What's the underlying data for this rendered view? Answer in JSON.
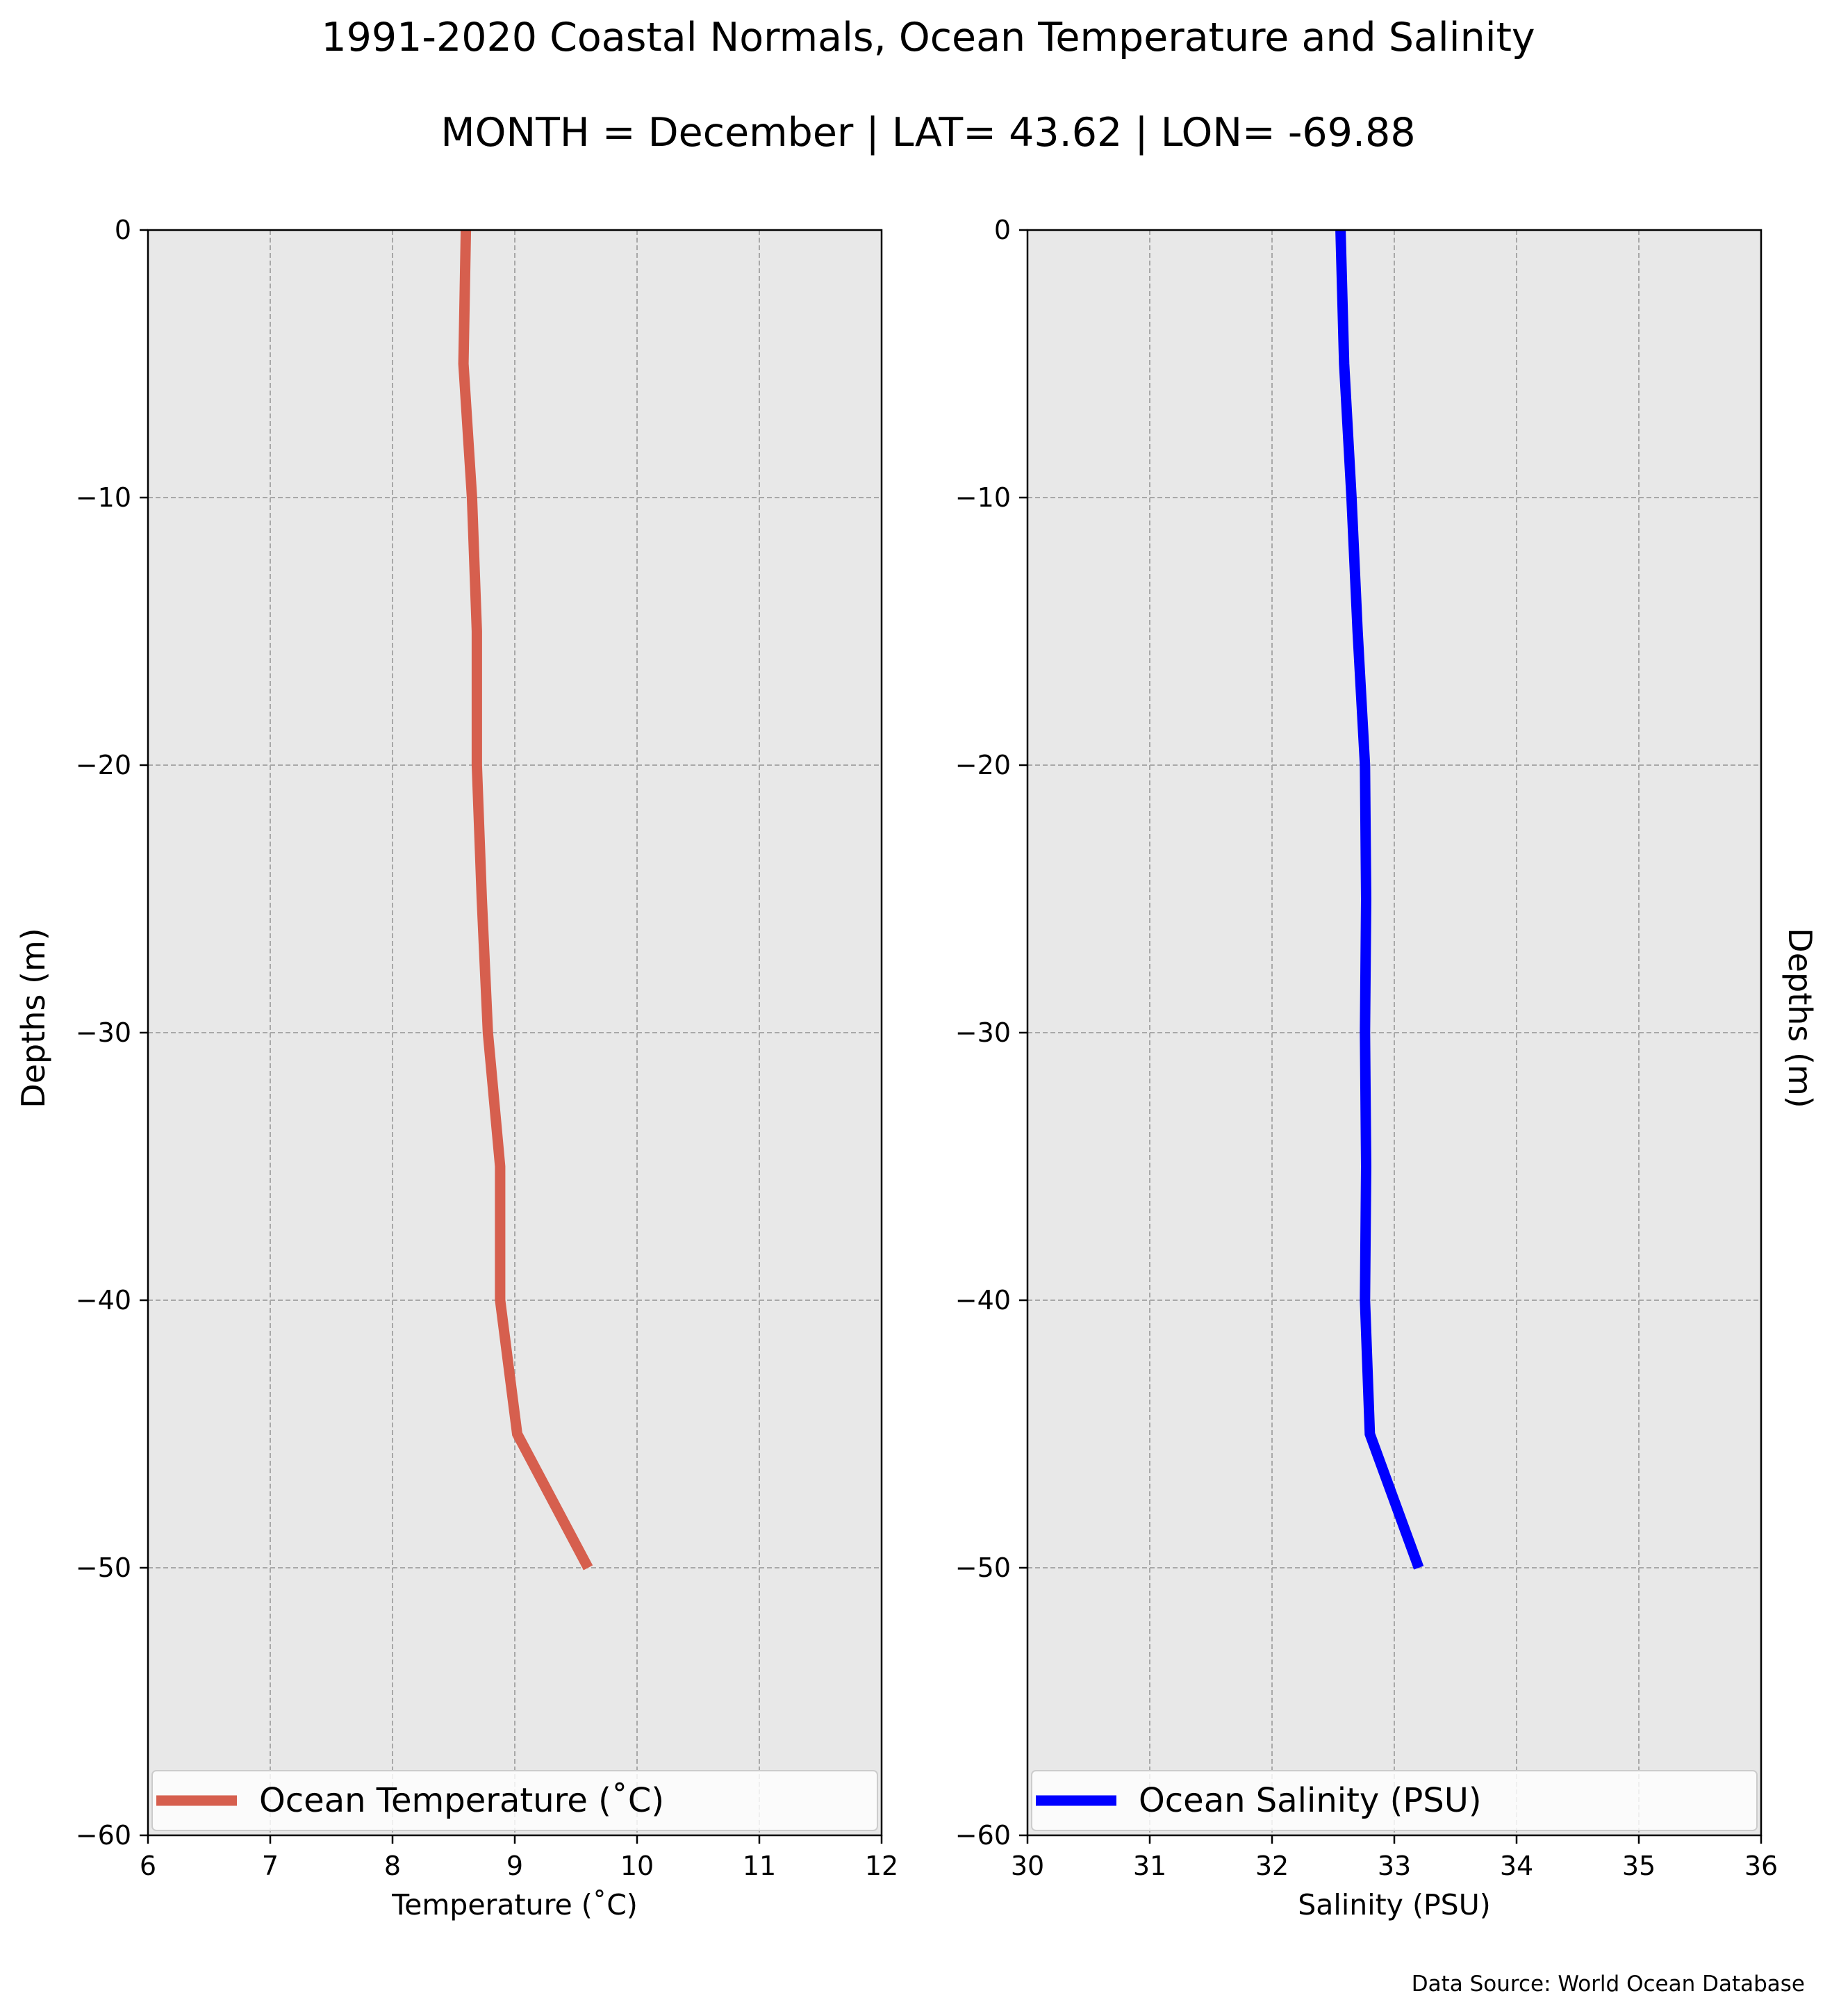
{
  "title": "1991-2020 Coastal Normals, Ocean Temperature and Salinity",
  "subtitle": "MONTH = December | LAT= 43.62 | LON= -69.88",
  "source": "Data Source: World Ocean Database",
  "chart_data": [
    {
      "type": "line",
      "xlabel": "Temperature ($^\\circ$C)",
      "xlabel_display": "Temperature (˚C)",
      "ylabel": "Depths (m)",
      "xlim": [
        6,
        12
      ],
      "ylim": [
        -60,
        0
      ],
      "xticks": [
        6,
        7,
        8,
        9,
        10,
        11,
        12
      ],
      "yticks": [
        0,
        -10,
        -20,
        -30,
        -40,
        -50,
        -60
      ],
      "xtick_labels": [
        "6",
        "7",
        "8",
        "9",
        "10",
        "11",
        "12"
      ],
      "ytick_labels": [
        "0",
        "−10",
        "−20",
        "−30",
        "−40",
        "−50",
        "−60"
      ],
      "grid": true,
      "legend_position": "lower",
      "series": [
        {
          "name": "Ocean Temperature (˚C)",
          "color": "#d65f4e",
          "depth": [
            0,
            -5,
            -10,
            -15,
            -20,
            -25,
            -30,
            -35,
            -40,
            -45,
            -50
          ],
          "values": [
            8.6,
            8.58,
            8.65,
            8.69,
            8.69,
            8.73,
            8.78,
            8.88,
            8.88,
            9.02,
            9.6
          ]
        }
      ]
    },
    {
      "type": "line",
      "xlabel": "Salinity (PSU)",
      "ylabel": "Depths (m)",
      "xlim": [
        30,
        36
      ],
      "ylim": [
        -60,
        0
      ],
      "xticks": [
        30,
        31,
        32,
        33,
        34,
        35,
        36
      ],
      "yticks": [
        0,
        -10,
        -20,
        -30,
        -40,
        -50,
        -60
      ],
      "xtick_labels": [
        "30",
        "31",
        "32",
        "33",
        "34",
        "35",
        "36"
      ],
      "ytick_labels": [
        "0",
        "−10",
        "−20",
        "−30",
        "−40",
        "−50",
        "−60"
      ],
      "grid": true,
      "legend_position": "lower",
      "series": [
        {
          "name": "Ocean Salinity (PSU)",
          "color": "#0000ff",
          "depth": [
            0,
            -5,
            -10,
            -15,
            -20,
            -25,
            -30,
            -35,
            -40,
            -45,
            -50
          ],
          "values": [
            32.56,
            32.59,
            32.65,
            32.7,
            32.76,
            32.77,
            32.76,
            32.77,
            32.76,
            32.8,
            33.2
          ]
        }
      ]
    }
  ],
  "colors": {
    "plot_background": "#e8e8e8",
    "grid": "#a8a8a8"
  }
}
